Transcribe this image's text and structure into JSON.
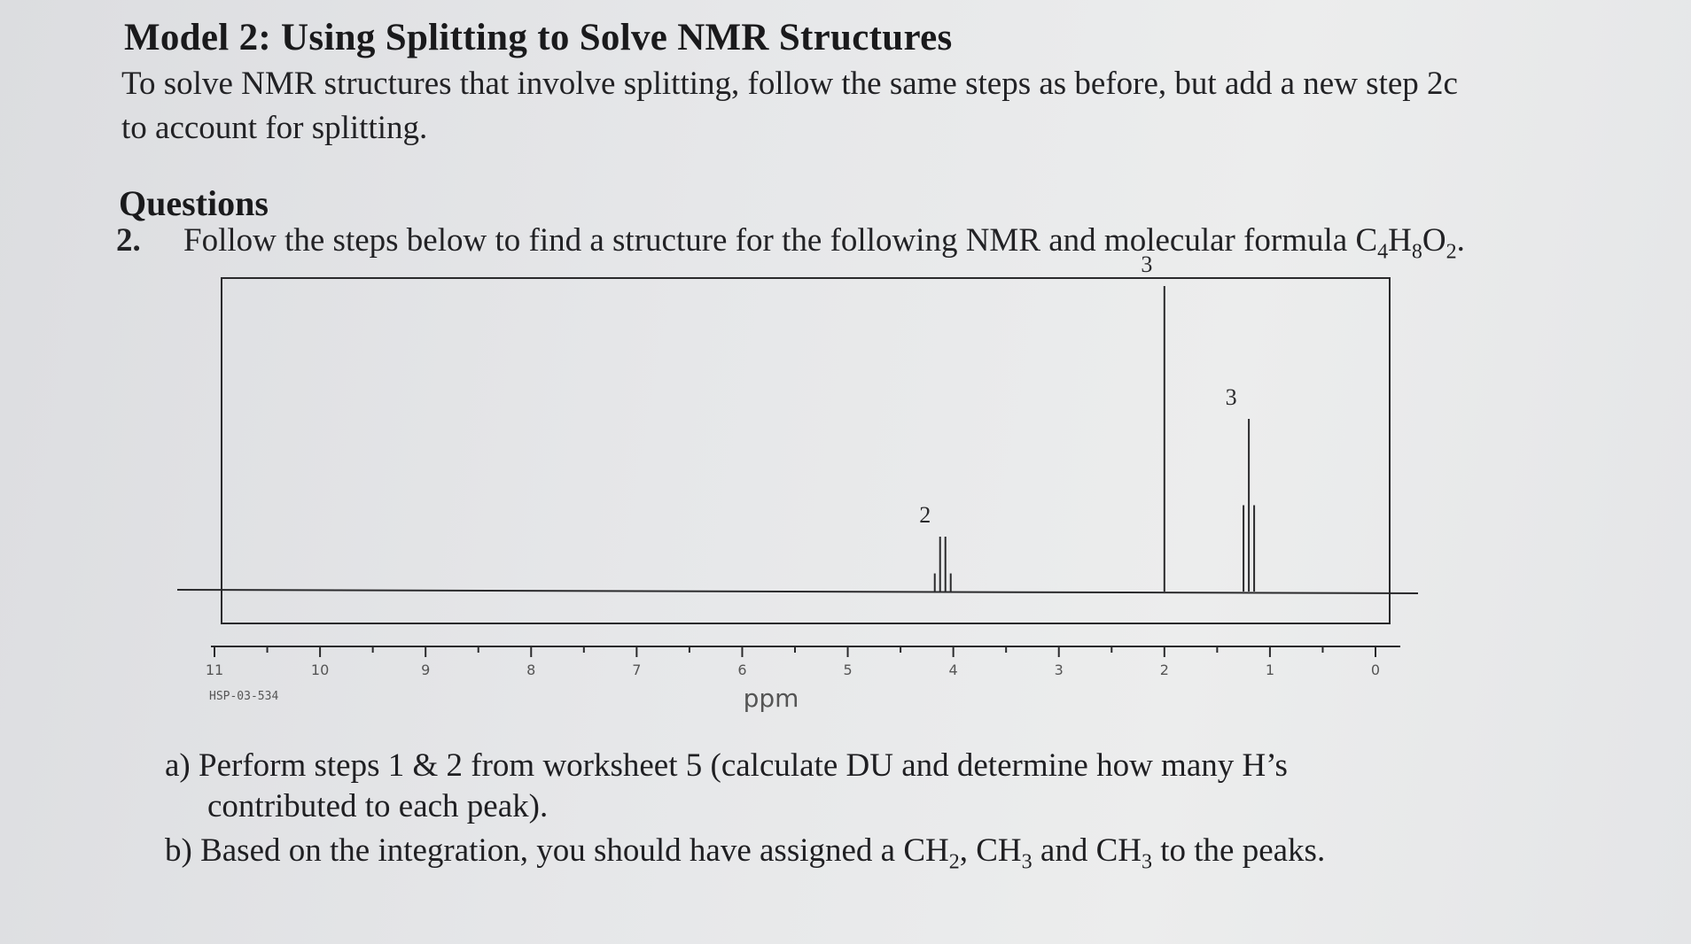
{
  "header": {
    "title": "Model 2: Using Splitting to Solve NMR Structures",
    "intro_line1": "To solve NMR structures that involve splitting, follow the same steps as before, but add a new step 2c",
    "intro_line2": "to account for splitting."
  },
  "questions": {
    "heading": "Questions",
    "q2_number": "2.",
    "q2_text_before": "Follow the steps below to find a structure for the following NMR and molecular formula C",
    "q2_formula_c_sub": "4",
    "q2_formula_h": "H",
    "q2_formula_h_sub": "8",
    "q2_formula_o": "O",
    "q2_formula_o_sub": "2",
    "q2_text_after": "."
  },
  "chart_data": {
    "type": "line",
    "xlabel": "ppm",
    "xlim": [
      11,
      0
    ],
    "ticks": [
      "11",
      "10",
      "9",
      "8",
      "7",
      "6",
      "5",
      "4",
      "3",
      "2",
      "1",
      "0"
    ],
    "sample_id": "HSP-03-534",
    "peaks": [
      {
        "shift_ppm": 4.1,
        "multiplicity": "quartet",
        "integration": "2"
      },
      {
        "shift_ppm": 2.0,
        "multiplicity": "singlet",
        "integration": "3"
      },
      {
        "shift_ppm": 1.2,
        "multiplicity": "triplet",
        "integration": "3"
      }
    ]
  },
  "subquestions": {
    "a_line1": "a) Perform steps 1 & 2 from worksheet 5 (calculate DU and determine how many H’s",
    "a_line2": "contributed to each peak).",
    "b_before": "b) Based on the integration, you should have assigned a CH",
    "b_sub1": "2",
    "b_mid1": ", CH",
    "b_sub2": "3",
    "b_mid2": " and CH",
    "b_sub3": "3",
    "b_after": " to the peaks."
  }
}
